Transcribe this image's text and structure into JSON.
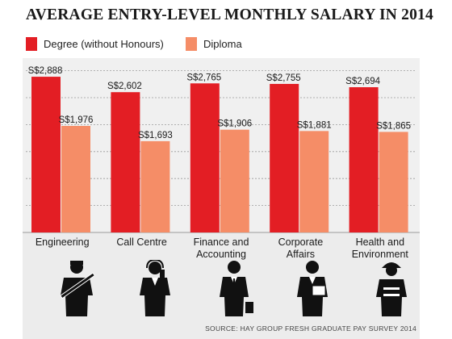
{
  "chart_data": {
    "type": "bar",
    "title": "AVERAGE ENTRY-LEVEL MONTHLY SALARY IN 2014",
    "categories": [
      [
        "Engineering"
      ],
      [
        "Call Centre"
      ],
      [
        "Finance and",
        "Accounting"
      ],
      [
        "Corporate",
        "Affairs"
      ],
      [
        "Health and",
        "Environment"
      ]
    ],
    "series": [
      {
        "name": "Degree (without Honours)",
        "color": "#e31e24",
        "values": [
          2888,
          2602,
          2765,
          2755,
          2694
        ],
        "labels": [
          "S$2,888",
          "S$2,602",
          "S$2,765",
          "S$2,755",
          "S$2,694"
        ]
      },
      {
        "name": "Diploma",
        "color": "#f58d67",
        "values": [
          1976,
          1693,
          1906,
          1881,
          1865
        ],
        "labels": [
          "S$1,976",
          "S$1,693",
          "S$1,906",
          "S$1,881",
          "S$1,865"
        ]
      }
    ],
    "ylim": [
      0,
      3000
    ],
    "grid": true,
    "legend": "top-left"
  },
  "icons": [
    "engineer-with-pipe-icon",
    "call-centre-agent-icon",
    "businessman-with-briefcase-icon",
    "businessman-with-folder-icon",
    "worker-with-hard-hat-icon"
  ],
  "source": "SOURCE: HAY GROUP FRESH GRADUATE PAY SURVEY 2014"
}
